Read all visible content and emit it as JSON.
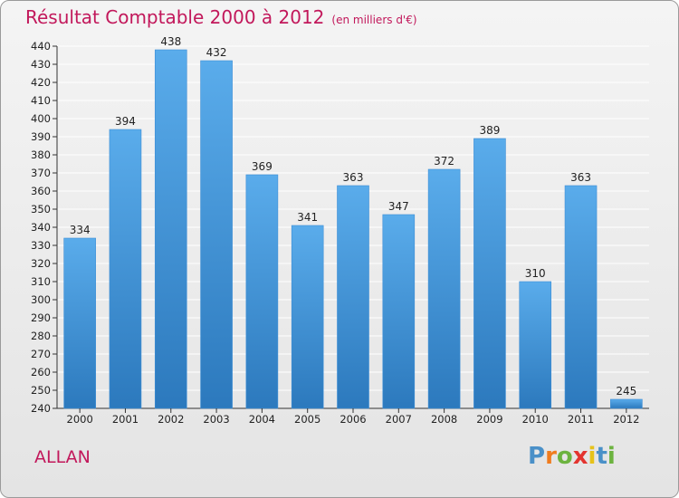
{
  "title": "Résultat Comptable 2000 à 2012",
  "subtitle": "(en milliers d'€)",
  "town": "ALLAN",
  "logo": {
    "text": "Proxiti",
    "colors": [
      "#4a90c8",
      "#f07c1e",
      "#6cb33f",
      "#e3342f",
      "#e6c21a",
      "#4a90c8",
      "#6cb33f"
    ]
  },
  "colors": {
    "bar_top": "#5aaceb",
    "bar_bottom": "#2c79bd",
    "title": "#c2185b",
    "grid": "#ffffff"
  },
  "chart_data": {
    "type": "bar",
    "title": "Résultat Comptable 2000 à 2012",
    "xlabel": "",
    "ylabel": "",
    "categories": [
      "2000",
      "2001",
      "2002",
      "2003",
      "2004",
      "2005",
      "2006",
      "2007",
      "2008",
      "2009",
      "2010",
      "2011",
      "2012"
    ],
    "values": [
      334,
      394,
      438,
      432,
      369,
      341,
      363,
      347,
      372,
      389,
      310,
      363,
      245
    ],
    "ylim": [
      240,
      440
    ],
    "ytick_step": 10,
    "grid": true
  }
}
